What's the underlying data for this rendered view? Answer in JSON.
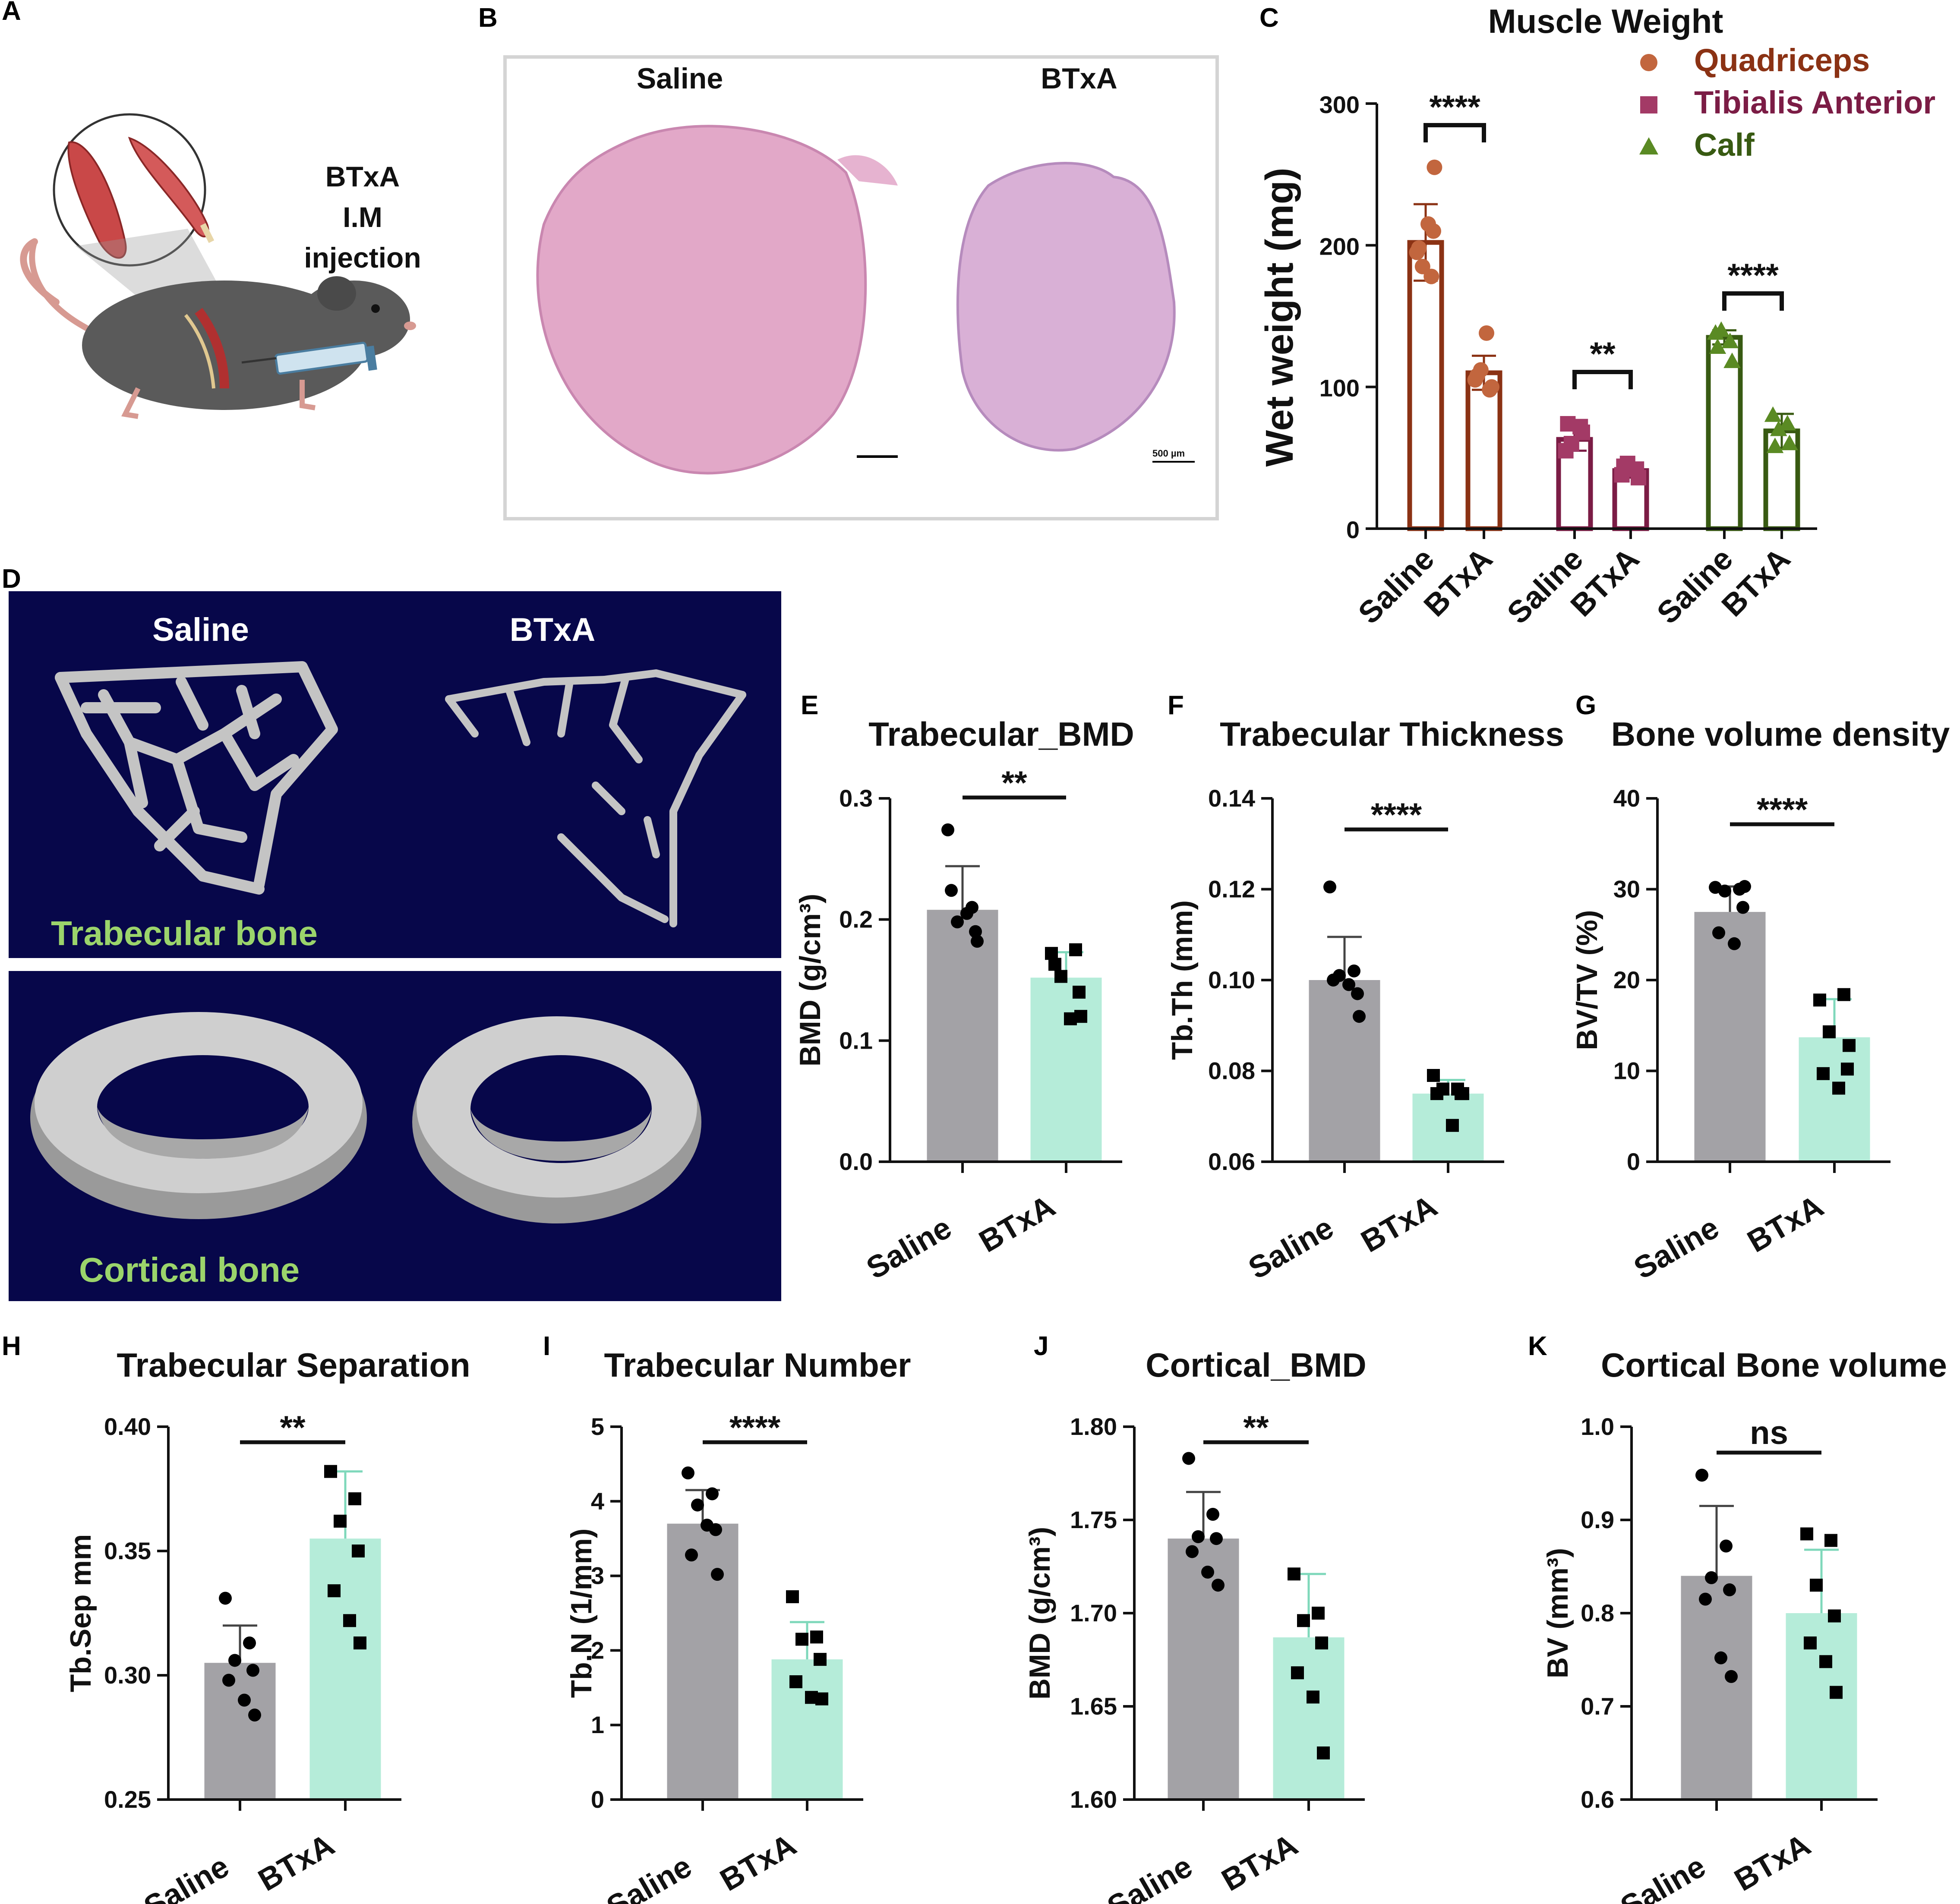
{
  "panels": {
    "A": {
      "letter": "A",
      "text": [
        "BTxA",
        "I.M",
        "injection"
      ]
    },
    "B": {
      "letter": "B",
      "left_label": "Saline",
      "right_label": "BTxA",
      "scale_text": "500 µm"
    },
    "D": {
      "letter": "D",
      "saline": "Saline",
      "btxa": "BTxA",
      "trabecular": "Trabecular bone",
      "cortical": "Cortical bone"
    }
  },
  "colors": {
    "saline_bar": "#a3a2a6",
    "btxa_bar": "#b5ecd9",
    "quadriceps": "#8b3214",
    "quadriceps_point": "#c2663e",
    "tibialis": "#7b1c45",
    "tibialis_point": "#a33a66",
    "calf": "#385a12",
    "calf_point": "#5a8a23",
    "micro_ct_bg": "#07074a",
    "micro_ct_text": "#9bd46b",
    "bone": "#c4c4c4"
  },
  "chart_data": [
    {
      "id": "C",
      "letter": "C",
      "type": "bar",
      "title": "Muscle Weight",
      "ylabel": "Wet weight (mg)",
      "ylim": [
        0,
        300
      ],
      "yticks": [
        0,
        100,
        200,
        300
      ],
      "groups": [
        {
          "name": "Quadriceps",
          "categories": [
            "Saline",
            "BTxA"
          ],
          "values": [
            202,
            110
          ],
          "err": [
            27,
            12
          ],
          "points": [
            [
              195,
              178,
              185,
              210,
              198,
              215,
              255
            ],
            [
              105,
              98,
              112,
              100,
              108,
              138
            ]
          ],
          "sig": "****",
          "marker": "circle"
        },
        {
          "name": "Tibialis Anterior",
          "categories": [
            "Saline",
            "BTxA"
          ],
          "values": [
            63,
            41
          ],
          "err": [
            8,
            5
          ],
          "points": [
            [
              55,
              72,
              60,
              68,
              74
            ],
            [
              38,
              42,
              46,
              36,
              44
            ]
          ],
          "sig": "**",
          "marker": "square"
        },
        {
          "name": "Calf",
          "categories": [
            "Saline",
            "BTxA"
          ],
          "values": [
            135,
            69
          ],
          "err": [
            5,
            12
          ],
          "points": [
            [
              138,
              132,
              140,
              118,
              128
            ],
            [
              80,
              74,
              70,
              60,
              58
            ]
          ],
          "sig": "****",
          "marker": "triangle"
        }
      ]
    },
    {
      "id": "E",
      "letter": "E",
      "type": "bar",
      "title": "Trabecular_BMD",
      "ylabel": "BMD (g/cm³)",
      "ylim": [
        0,
        0.3
      ],
      "yticks": [
        "0.0",
        "0.1",
        "0.2",
        "0.3"
      ],
      "categories": [
        "Saline",
        "BTxA"
      ],
      "values": [
        0.208,
        0.152
      ],
      "err": [
        0.036,
        0.021
      ],
      "points": [
        [
          0.274,
          0.21,
          0.198,
          0.19,
          0.224,
          0.205,
          0.182
        ],
        [
          0.172,
          0.175,
          0.153,
          0.14,
          0.163,
          0.118,
          0.12
        ]
      ],
      "sig": "**"
    },
    {
      "id": "F",
      "letter": "F",
      "type": "bar",
      "title": "Trabecular Thickness",
      "ylabel": "Tb.Th (mm)",
      "ylim": [
        0.06,
        0.14
      ],
      "yticks": [
        "0.06",
        "0.08",
        "0.10",
        "0.12",
        "0.14"
      ],
      "categories": [
        "Saline",
        "BTxA"
      ],
      "values": [
        0.1,
        0.075
      ],
      "err": [
        0.0095,
        0.003
      ],
      "points": [
        [
          0.1205,
          0.102,
          0.101,
          0.097,
          0.1,
          0.099,
          0.092
        ],
        [
          0.079,
          0.076,
          0.076,
          0.075,
          0.075,
          0.068,
          0.075
        ]
      ],
      "sig": "****"
    },
    {
      "id": "G",
      "letter": "G",
      "type": "bar",
      "title": "Bone volume density",
      "ylabel": "BV/TV (%)",
      "ylim": [
        0,
        40
      ],
      "yticks": [
        "0",
        "10",
        "20",
        "30",
        "40"
      ],
      "categories": [
        "Saline",
        "BTxA"
      ],
      "values": [
        27.5,
        13.7
      ],
      "err": [
        2.8,
        4.2
      ],
      "points": [
        [
          30.2,
          30,
          29.8,
          28,
          25.2,
          24,
          30.3
        ],
        [
          17.8,
          18.4,
          14.3,
          10.2,
          9.7,
          8.1,
          12.8
        ]
      ],
      "sig": "****"
    },
    {
      "id": "H",
      "letter": "H",
      "type": "bar",
      "title": "Trabecular Separation",
      "ylabel": "Tb.Sep mm",
      "ylim": [
        0.25,
        0.4
      ],
      "yticks": [
        "0.25",
        "0.30",
        "0.35",
        "0.40"
      ],
      "categories": [
        "Saline",
        "BTxA"
      ],
      "values": [
        0.305,
        0.355
      ],
      "err": [
        0.015,
        0.027
      ],
      "points": [
        [
          0.331,
          0.313,
          0.306,
          0.302,
          0.298,
          0.29,
          0.284
        ],
        [
          0.382,
          0.371,
          0.362,
          0.35,
          0.334,
          0.322,
          0.313
        ]
      ],
      "sig": "**"
    },
    {
      "id": "I",
      "letter": "I",
      "type": "bar",
      "title": "Trabecular Number",
      "ylabel": "Tb.N (1/mm)",
      "ylim": [
        0,
        5
      ],
      "yticks": [
        "0",
        "1",
        "2",
        "3",
        "4",
        "5"
      ],
      "categories": [
        "Saline",
        "BTxA"
      ],
      "values": [
        3.7,
        1.88
      ],
      "err": [
        0.45,
        0.5
      ],
      "points": [
        [
          4.38,
          4.1,
          3.95,
          3.62,
          3.28,
          3.68,
          3.02
        ],
        [
          2.72,
          2.18,
          2.15,
          1.88,
          1.58,
          1.37,
          1.35
        ]
      ],
      "sig": "****"
    },
    {
      "id": "J",
      "letter": "J",
      "type": "bar",
      "title": "Cortical_BMD",
      "ylabel": "BMD (g/cm³)",
      "ylim": [
        1.6,
        1.8
      ],
      "yticks": [
        "1.60",
        "1.65",
        "1.70",
        "1.75",
        "1.80"
      ],
      "categories": [
        "Saline",
        "BTxA"
      ],
      "values": [
        1.74,
        1.687
      ],
      "err": [
        0.025,
        0.034
      ],
      "points": [
        [
          1.783,
          1.753,
          1.741,
          1.74,
          1.733,
          1.722,
          1.715
        ],
        [
          1.721,
          1.7,
          1.696,
          1.684,
          1.668,
          1.655,
          1.625
        ]
      ],
      "sig": "**"
    },
    {
      "id": "K",
      "letter": "K",
      "type": "bar",
      "title": "Cortical Bone volume",
      "ylabel": "BV (mm³)",
      "ylim": [
        0.6,
        1.0
      ],
      "yticks": [
        "0.6",
        "0.7",
        "0.8",
        "0.9",
        "1.0"
      ],
      "categories": [
        "Saline",
        "BTxA"
      ],
      "values": [
        0.84,
        0.8
      ],
      "err": [
        0.075,
        0.068
      ],
      "points": [
        [
          0.948,
          0.872,
          0.838,
          0.825,
          0.815,
          0.752,
          0.732
        ],
        [
          0.885,
          0.878,
          0.83,
          0.797,
          0.768,
          0.748,
          0.715
        ]
      ],
      "sig": "ns"
    }
  ]
}
